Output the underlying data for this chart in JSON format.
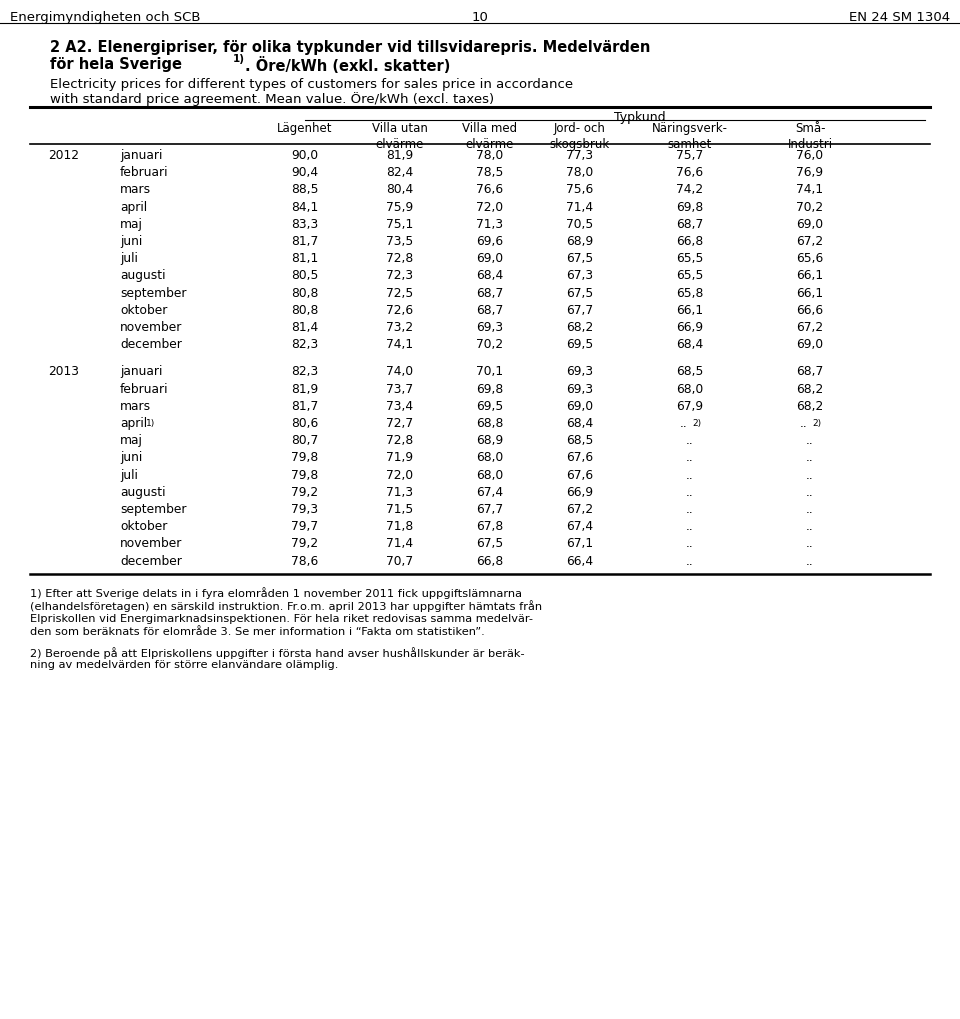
{
  "header_left": "Energimyndigheten och SCB",
  "header_center": "10",
  "header_right": "EN 24 SM 1304",
  "title_line1": "2 A2. Elenergipriser, för olika typkunder vid tillsvidarepris. Medelvärden",
  "title_line2a": "för hela Sverige",
  "title_line2b": ". Öre/kWh (exkl. skatter)",
  "subtitle_line1": "Electricity prices for different types of customers for sales price in accordance",
  "subtitle_line2": "with standard price agreement. Mean value. Öre/kWh (excl. taxes)",
  "typkund_label": "Typkund",
  "col_headers": [
    "Lägenhet",
    "Villa utan\nelvärme",
    "Villa med\nelvärme",
    "Jord- och\nskogsbruk",
    "Näringsverk-\nsamhet",
    "Små-\nIndustri"
  ],
  "data_2012": [
    [
      "januari",
      "90,0",
      "81,9",
      "78,0",
      "77,3",
      "75,7",
      "76,0"
    ],
    [
      "februari",
      "90,4",
      "82,4",
      "78,5",
      "78,0",
      "76,6",
      "76,9"
    ],
    [
      "mars",
      "88,5",
      "80,4",
      "76,6",
      "75,6",
      "74,2",
      "74,1"
    ],
    [
      "april",
      "84,1",
      "75,9",
      "72,0",
      "71,4",
      "69,8",
      "70,2"
    ],
    [
      "maj",
      "83,3",
      "75,1",
      "71,3",
      "70,5",
      "68,7",
      "69,0"
    ],
    [
      "juni",
      "81,7",
      "73,5",
      "69,6",
      "68,9",
      "66,8",
      "67,2"
    ],
    [
      "juli",
      "81,1",
      "72,8",
      "69,0",
      "67,5",
      "65,5",
      "65,6"
    ],
    [
      "augusti",
      "80,5",
      "72,3",
      "68,4",
      "67,3",
      "65,5",
      "66,1"
    ],
    [
      "september",
      "80,8",
      "72,5",
      "68,7",
      "67,5",
      "65,8",
      "66,1"
    ],
    [
      "oktober",
      "80,8",
      "72,6",
      "68,7",
      "67,7",
      "66,1",
      "66,6"
    ],
    [
      "november",
      "81,4",
      "73,2",
      "69,3",
      "68,2",
      "66,9",
      "67,2"
    ],
    [
      "december",
      "82,3",
      "74,1",
      "70,2",
      "69,5",
      "68,4",
      "69,0"
    ]
  ],
  "data_2013": [
    [
      "januari",
      "82,3",
      "74,0",
      "70,1",
      "69,3",
      "68,5",
      "68,7"
    ],
    [
      "februari",
      "81,9",
      "73,7",
      "69,8",
      "69,3",
      "68,0",
      "68,2"
    ],
    [
      "mars",
      "81,7",
      "73,4",
      "69,5",
      "69,0",
      "67,9",
      "68,2"
    ],
    [
      "april",
      "80,6",
      "72,7",
      "68,8",
      "68,4",
      "..",
      ".."
    ],
    [
      "maj",
      "80,7",
      "72,8",
      "68,9",
      "68,5",
      "..",
      ".."
    ],
    [
      "juni",
      "79,8",
      "71,9",
      "68,0",
      "67,6",
      "..",
      ".."
    ],
    [
      "juli",
      "79,8",
      "72,0",
      "68,0",
      "67,6",
      "..",
      ".."
    ],
    [
      "augusti",
      "79,2",
      "71,3",
      "67,4",
      "66,9",
      "..",
      ".."
    ],
    [
      "september",
      "79,3",
      "71,5",
      "67,7",
      "67,2",
      "..",
      ".."
    ],
    [
      "oktober",
      "79,7",
      "71,8",
      "67,8",
      "67,4",
      "..",
      ".."
    ],
    [
      "november",
      "79,2",
      "71,4",
      "67,5",
      "67,1",
      "..",
      ".."
    ],
    [
      "december",
      "78,6",
      "70,7",
      "66,8",
      "66,4",
      "..",
      ".."
    ]
  ],
  "footnote1_lines": [
    "1) Efter att Sverige delats in i fyra elområden 1 november 2011 fick uppgiftslämnarna",
    "(elhandelsföretagen) en särskild instruktion. Fr.o.m. april 2013 har uppgifter hämtats från",
    "Elpriskollen vid Energimarknadsinspektionen. För hela riket redovisas samma medelvär-",
    "den som beräknats för elområde 3. Se mer information i “Fakta om statistiken”."
  ],
  "footnote2_lines": [
    "2) Beroende på att Elpriskollens uppgifter i första hand avser hushållskunder är beräk-",
    "ning av medelvärden för större elanvändare olämplig."
  ],
  "bg_color": "#ffffff",
  "text_color": "#000000",
  "line_color": "#000000"
}
